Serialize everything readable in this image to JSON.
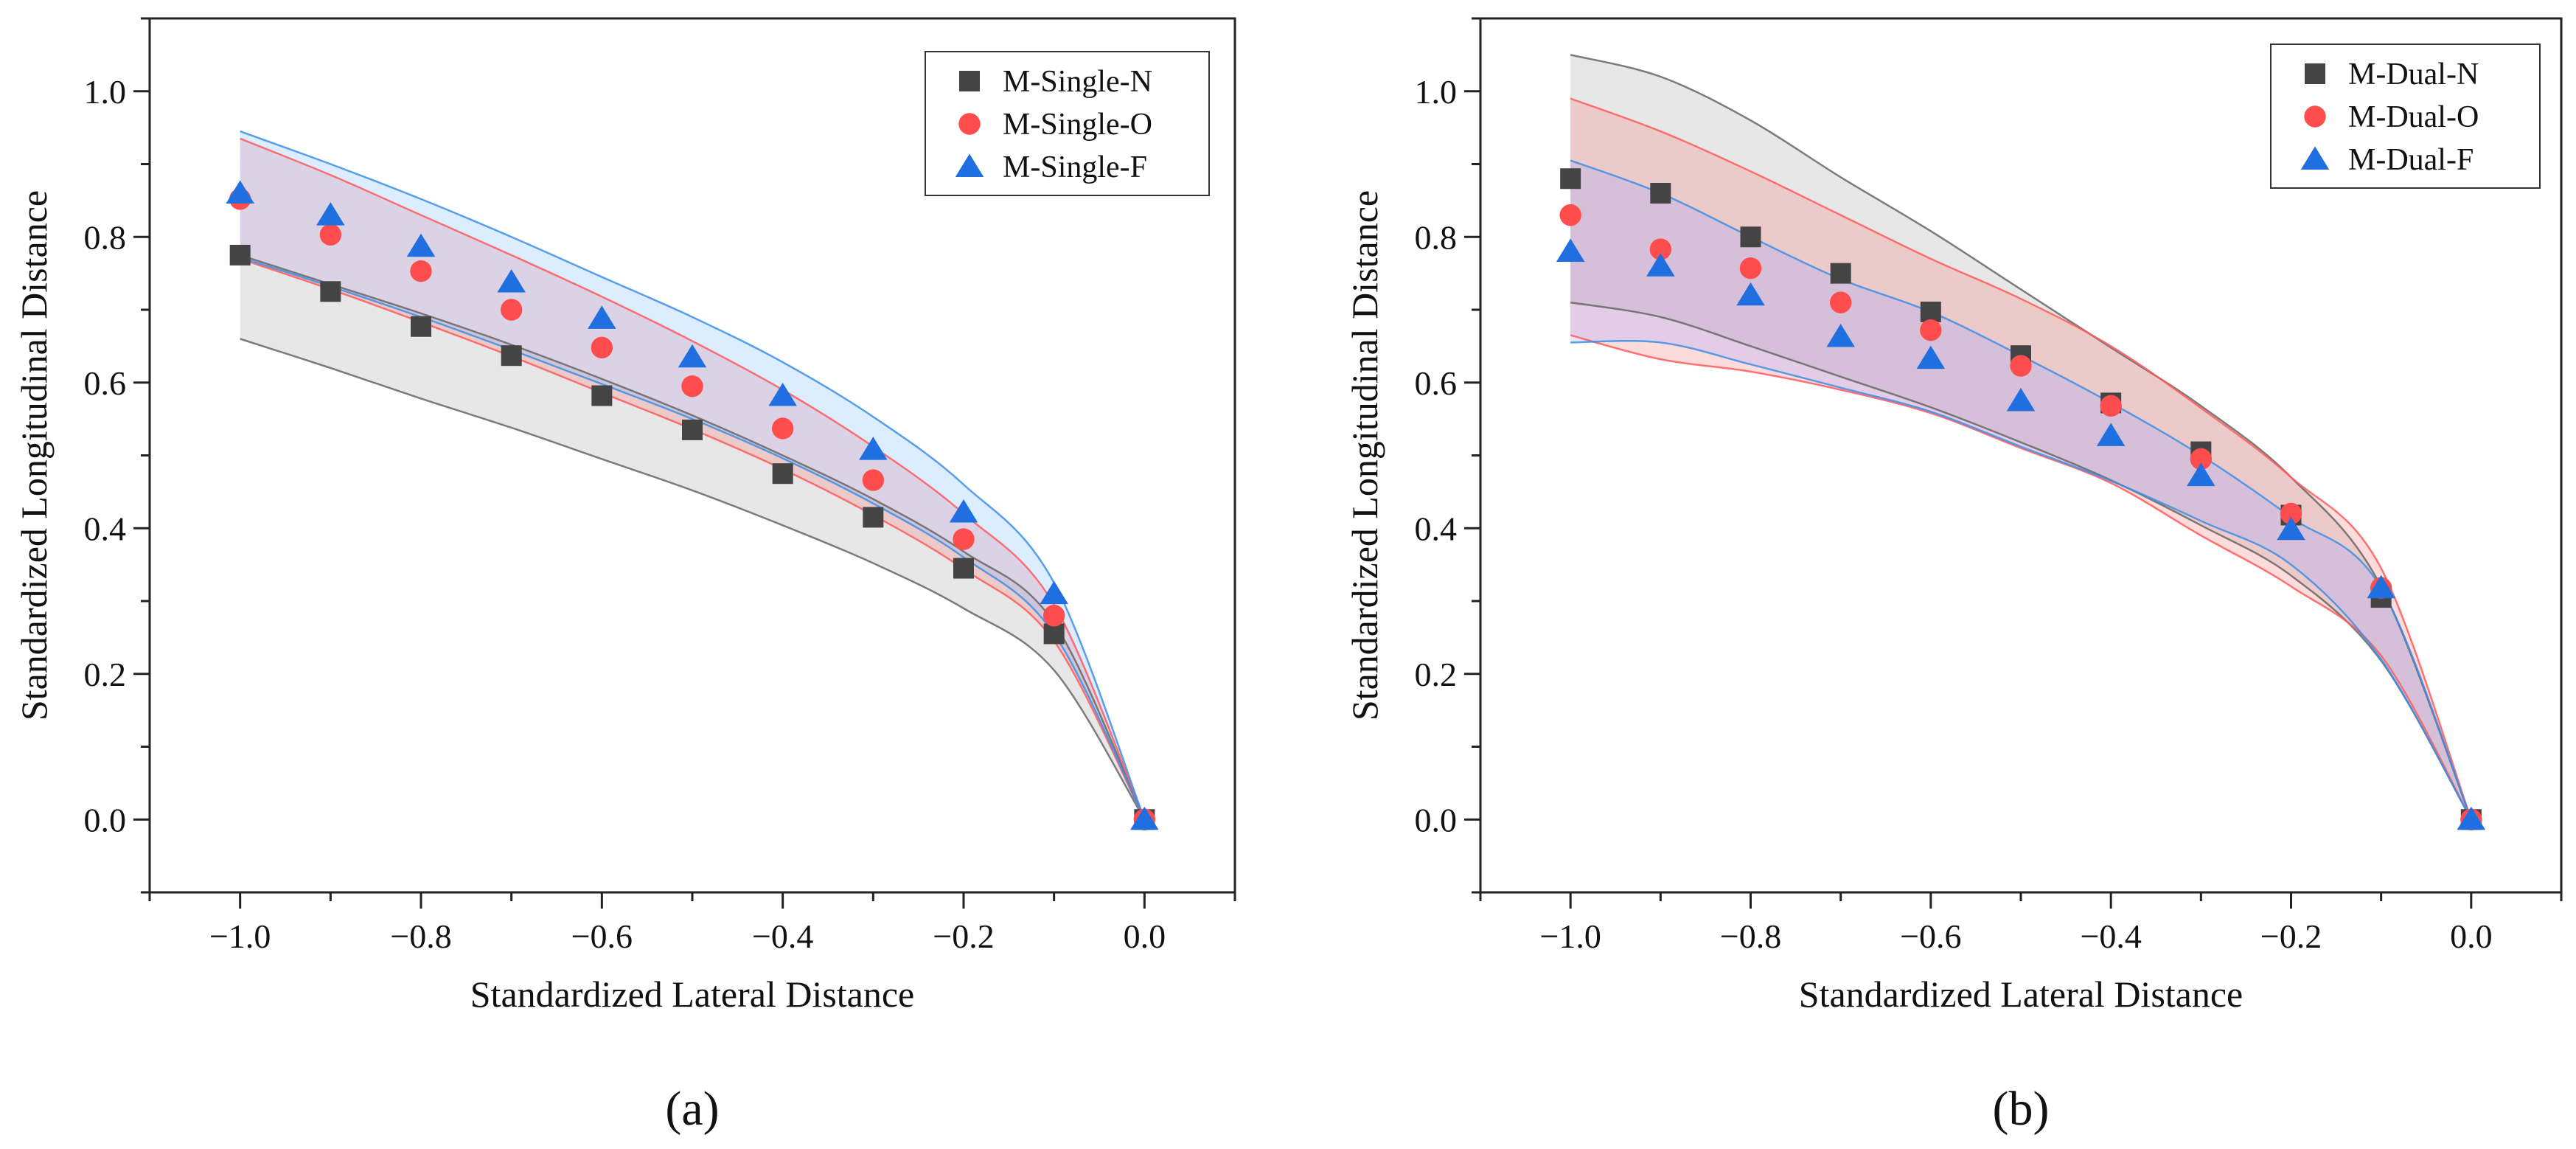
{
  "chart_data": [
    {
      "type": "scatter",
      "panel_label": "(a)",
      "xlabel": "Standardized Lateral Distance",
      "ylabel": "Standardized Longitudinal Distance",
      "xlim": [
        -1.1,
        0.1
      ],
      "ylim": [
        -0.1,
        1.1
      ],
      "xticks": [
        "-1.0",
        "-0.8",
        "-0.6",
        "-0.4",
        "-0.2",
        "0.0"
      ],
      "yticks": [
        "0.0",
        "0.2",
        "0.4",
        "0.6",
        "0.8",
        "1.0"
      ],
      "legend_position": "top-right",
      "x": [
        -1.0,
        -0.9,
        -0.8,
        -0.7,
        -0.6,
        -0.5,
        -0.4,
        -0.3,
        -0.2,
        -0.1,
        0.0
      ],
      "series": [
        {
          "name": "M-Single-N",
          "marker": "square",
          "color": "#444444",
          "values": [
            0.775,
            0.725,
            0.677,
            0.637,
            0.582,
            0.535,
            0.475,
            0.415,
            0.345,
            0.255,
            0.0
          ],
          "band_upper": [
            0.775,
            0.735,
            0.695,
            0.652,
            0.605,
            0.555,
            0.5,
            0.44,
            0.368,
            0.27,
            0.0
          ],
          "band_lower": [
            0.66,
            0.62,
            0.578,
            0.538,
            0.495,
            0.452,
            0.404,
            0.352,
            0.29,
            0.205,
            0.0
          ],
          "band_color": "#aaaaaa",
          "line_color": "#666666"
        },
        {
          "name": "M-Single-O",
          "marker": "circle",
          "color": "#ff4d4d",
          "values": [
            0.852,
            0.803,
            0.753,
            0.7,
            0.648,
            0.595,
            0.537,
            0.466,
            0.385,
            0.28,
            0.0
          ],
          "band_upper": [
            0.935,
            0.885,
            0.83,
            0.775,
            0.718,
            0.657,
            0.59,
            0.512,
            0.42,
            0.295,
            0.0
          ],
          "band_lower": [
            0.77,
            0.728,
            0.683,
            0.636,
            0.586,
            0.536,
            0.481,
            0.418,
            0.344,
            0.245,
            0.0
          ],
          "band_color": "#ff8080",
          "line_color": "#ff5a5a"
        },
        {
          "name": "M-Single-F",
          "marker": "triangle",
          "color": "#1f6fe0",
          "values": [
            0.86,
            0.83,
            0.787,
            0.738,
            0.688,
            0.635,
            0.582,
            0.508,
            0.422,
            0.31,
            0.0
          ],
          "band_upper": [
            0.945,
            0.9,
            0.852,
            0.8,
            0.745,
            0.69,
            0.628,
            0.553,
            0.46,
            0.325,
            0.0
          ],
          "band_lower": [
            0.772,
            0.732,
            0.69,
            0.645,
            0.598,
            0.55,
            0.496,
            0.434,
            0.36,
            0.255,
            0.0
          ],
          "band_color": "#7fbfff",
          "line_color": "#3d8ee6"
        }
      ]
    },
    {
      "type": "scatter",
      "panel_label": "(b)",
      "xlabel": "Standardized Lateral Distance",
      "ylabel": "Standardized Longitudinal Distance",
      "xlim": [
        -1.1,
        0.1
      ],
      "ylim": [
        -0.1,
        1.1
      ],
      "xticks": [
        "-1.0",
        "-0.8",
        "-0.6",
        "-0.4",
        "-0.2",
        "0.0"
      ],
      "yticks": [
        "0.0",
        "0.2",
        "0.4",
        "0.6",
        "0.8",
        "1.0"
      ],
      "legend_position": "top-right",
      "x": [
        -1.0,
        -0.9,
        -0.8,
        -0.7,
        -0.6,
        -0.5,
        -0.4,
        -0.3,
        -0.2,
        -0.1,
        0.0
      ],
      "series": [
        {
          "name": "M-Dual-N",
          "marker": "square",
          "color": "#444444",
          "values": [
            0.88,
            0.86,
            0.8,
            0.75,
            0.697,
            0.637,
            0.572,
            0.505,
            0.418,
            0.305,
            0.0
          ],
          "band_upper": [
            1.05,
            1.02,
            0.96,
            0.882,
            0.808,
            0.728,
            0.648,
            0.568,
            0.47,
            0.32,
            0.0
          ],
          "band_lower": [
            0.71,
            0.69,
            0.65,
            0.608,
            0.566,
            0.518,
            0.466,
            0.404,
            0.335,
            0.218,
            0.0
          ],
          "band_color": "#aaaaaa",
          "line_color": "#666666"
        },
        {
          "name": "M-Dual-O",
          "marker": "circle",
          "color": "#ff4d4d",
          "values": [
            0.83,
            0.783,
            0.757,
            0.71,
            0.672,
            0.623,
            0.568,
            0.495,
            0.42,
            0.318,
            0.0
          ],
          "band_upper": [
            0.99,
            0.945,
            0.89,
            0.83,
            0.77,
            0.715,
            0.65,
            0.565,
            0.47,
            0.345,
            0.0
          ],
          "band_lower": [
            0.665,
            0.632,
            0.615,
            0.59,
            0.558,
            0.51,
            0.462,
            0.39,
            0.32,
            0.225,
            0.0
          ],
          "band_color": "#ff8080",
          "line_color": "#ff5a5a"
        },
        {
          "name": "M-Dual-F",
          "marker": "triangle",
          "color": "#1f6fe0",
          "values": [
            0.78,
            0.76,
            0.72,
            0.663,
            0.633,
            0.575,
            0.527,
            0.472,
            0.398,
            0.318,
            0.0
          ],
          "band_upper": [
            0.905,
            0.86,
            0.8,
            0.742,
            0.697,
            0.637,
            0.572,
            0.5,
            0.415,
            0.318,
            0.0
          ],
          "band_lower": [
            0.655,
            0.655,
            0.625,
            0.593,
            0.56,
            0.512,
            0.465,
            0.41,
            0.35,
            0.22,
            0.0
          ],
          "band_color": "#9aa6ff",
          "line_color": "#3d8ee6"
        }
      ]
    }
  ]
}
